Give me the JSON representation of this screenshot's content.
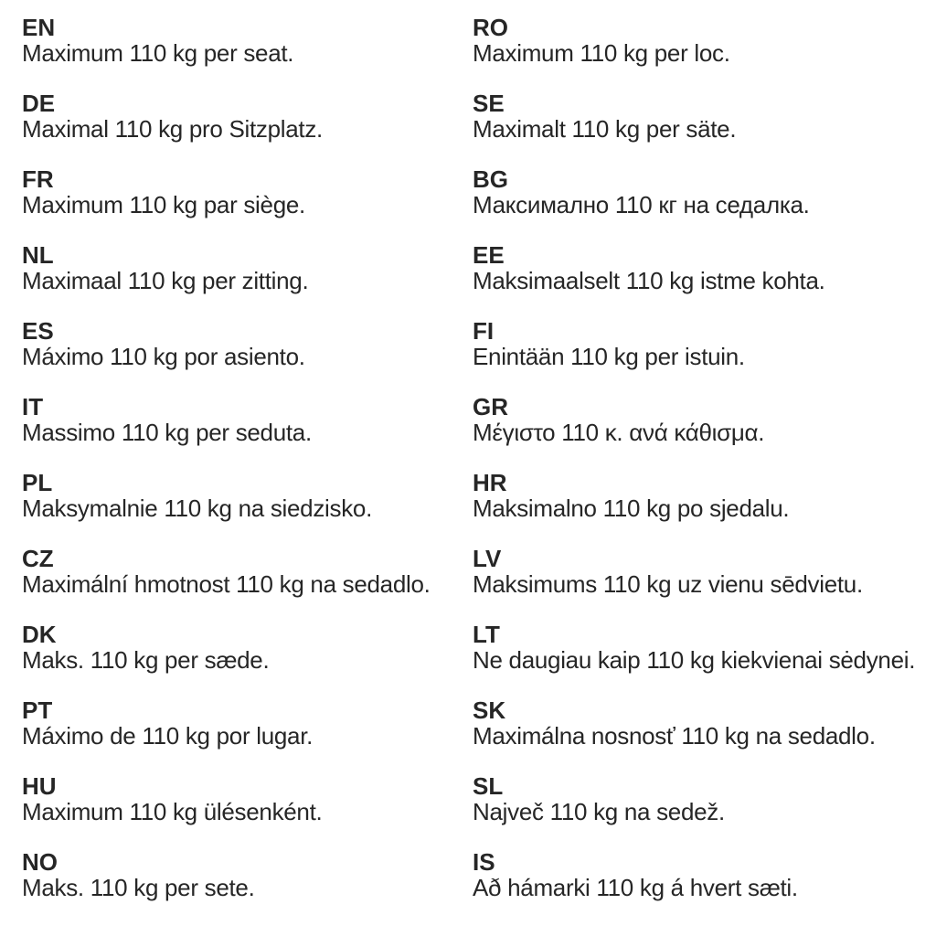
{
  "page": {
    "background_color": "#ffffff",
    "text_color": "#262626",
    "description": "Multilingual weight limit notice: maximum 110 kg per seat"
  },
  "entries_left": [
    {
      "code": "EN",
      "text": "Maximum 110 kg per seat."
    },
    {
      "code": "DE",
      "text": "Maximal 110 kg pro Sitzplatz."
    },
    {
      "code": "FR",
      "text": "Maximum 110 kg par siège."
    },
    {
      "code": "NL",
      "text": "Maximaal 110 kg per zitting."
    },
    {
      "code": "ES",
      "text": "Máximo 110 kg por asiento."
    },
    {
      "code": "IT",
      "text": "Massimo 110 kg per seduta."
    },
    {
      "code": "PL",
      "text": "Maksymalnie 110 kg na siedzisko."
    },
    {
      "code": "CZ",
      "text": "Maximální hmotnost 110 kg na sedadlo."
    },
    {
      "code": "DK",
      "text": "Maks. 110 kg per sæde."
    },
    {
      "code": "PT",
      "text": "Máximo de 110 kg por lugar."
    },
    {
      "code": "HU",
      "text": "Maximum 110 kg ülésenként."
    },
    {
      "code": "NO",
      "text": "Maks. 110 kg per sete."
    }
  ],
  "entries_right": [
    {
      "code": "RO",
      "text": "Maximum 110 kg per loc."
    },
    {
      "code": "SE",
      "text": "Maximalt 110 kg per säte."
    },
    {
      "code": "BG",
      "text": "Максимално 110 кг на седалка."
    },
    {
      "code": "EE",
      "text": "Maksimaalselt 110 kg istme kohta."
    },
    {
      "code": "FI",
      "text": "Enintään 110 kg per istuin."
    },
    {
      "code": "GR",
      "text": "Μέγιστο 110 κ. ανά κάθισμα."
    },
    {
      "code": "HR",
      "text": "Maksimalno 110 kg po sjedalu."
    },
    {
      "code": "LV",
      "text": "Maksimums 110 kg uz vienu sēdvietu."
    },
    {
      "code": "LT",
      "text": "Ne daugiau kaip 110 kg kiekvienai sėdynei."
    },
    {
      "code": "SK",
      "text": "Maximálna nosnosť 110 kg na sedadlo."
    },
    {
      "code": "SL",
      "text": "Največ 110 kg na sedež."
    },
    {
      "code": "IS",
      "text": "Að hámarki 110 kg á hvert sæti."
    }
  ]
}
